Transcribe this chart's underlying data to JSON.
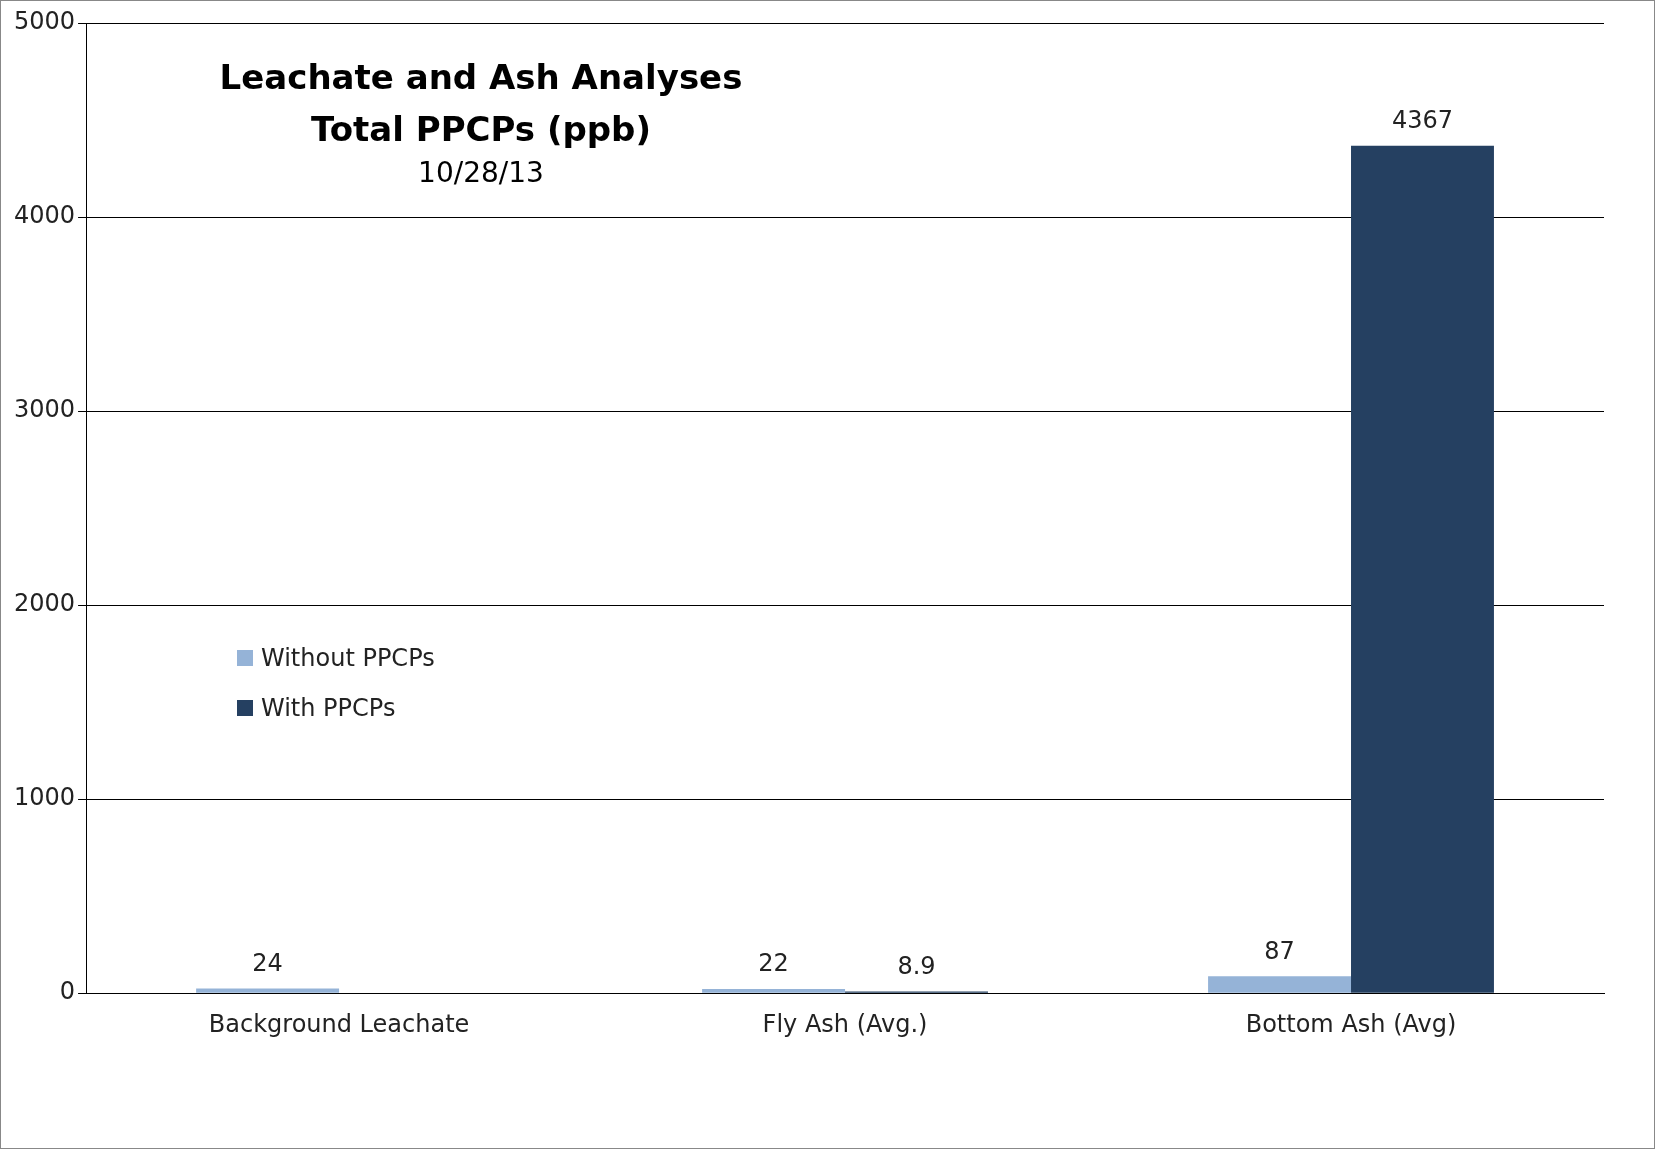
{
  "chart_data": {
    "type": "bar",
    "title": "Leachate and Ash Analyses\nTotal PPCPs (ppb)",
    "subtitle": "10/28/13",
    "categories": [
      "Background Leachate",
      "Fly Ash (Avg.)",
      "Bottom Ash (Avg)"
    ],
    "series": [
      {
        "name": "Without PPCPs",
        "color": "#95b3d7",
        "values": [
          24,
          22,
          87
        ]
      },
      {
        "name": "With PPCPs",
        "color": "#254061",
        "values": [
          null,
          8.9,
          4367
        ]
      }
    ],
    "ylim": [
      0,
      5000
    ],
    "yticks": [
      0,
      1000,
      2000,
      3000,
      4000,
      5000
    ],
    "grid": "y",
    "legend": "left",
    "data_labels": true
  }
}
